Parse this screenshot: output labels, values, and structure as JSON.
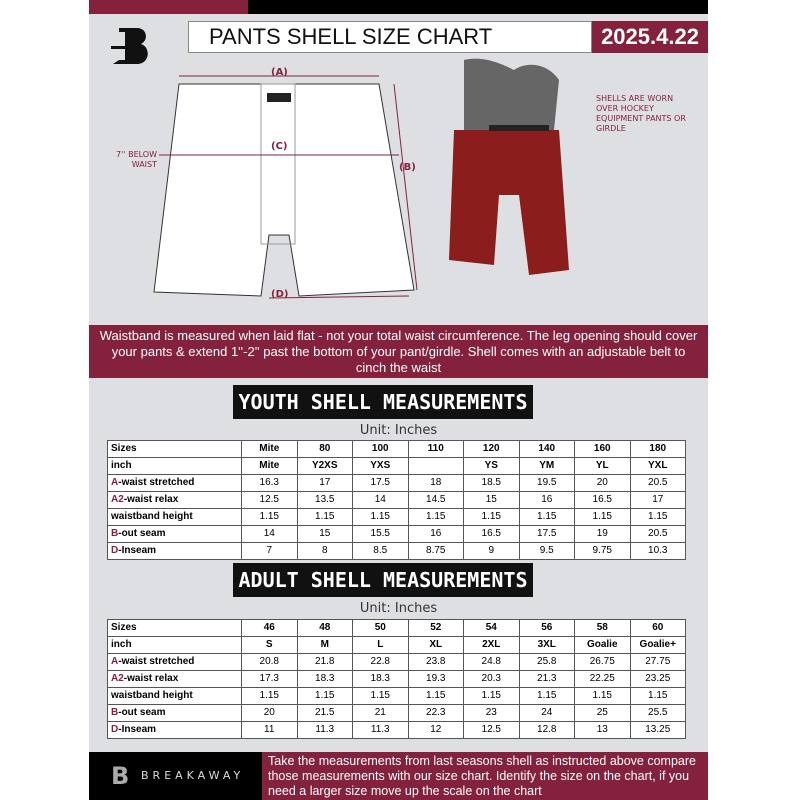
{
  "header": {
    "title": "PANTS SHELL SIZE CHART",
    "date": "2025.4.22",
    "logo_letter": "B"
  },
  "diagram": {
    "label_a": "(A)",
    "label_b": "(B)",
    "label_c": "(C)",
    "label_d": "(D)",
    "below_waist": "7'' BELOW WAIST",
    "shell_note": "SHELLS ARE WORN OVER HOCKEY EQUIPMENT PANTS OR GIRDLE"
  },
  "banner": {
    "text": "Waistband is measured when laid flat - not your total waist circumference. The leg opening should cover your pants & extend 1''-2'' past the bottom of your pant/girdle. Shell comes with an adjustable belt to cinch the waist"
  },
  "youth": {
    "title": "YOUTH SHELL MEASUREMENTS",
    "unit": "Unit: Inches",
    "rows": [
      {
        "prefix": "",
        "label": "Sizes",
        "values": [
          "Mite",
          "80",
          "100",
          "110",
          "120",
          "140",
          "160",
          "180"
        ]
      },
      {
        "prefix": "",
        "label": "inch",
        "values": [
          "Mite",
          "Y2XS",
          "YXS",
          "",
          "YS",
          "YM",
          "YL",
          "YXL"
        ]
      },
      {
        "prefix": "A",
        "label": "-waist stretched",
        "values": [
          "16.3",
          "17",
          "17.5",
          "18",
          "18.5",
          "19.5",
          "20",
          "20.5"
        ]
      },
      {
        "prefix": "A2",
        "label": "-waist relax",
        "values": [
          "12.5",
          "13.5",
          "14",
          "14.5",
          "15",
          "16",
          "16.5",
          "17"
        ]
      },
      {
        "prefix": "",
        "label": "waistband height",
        "values": [
          "1.15",
          "1.15",
          "1.15",
          "1.15",
          "1.15",
          "1.15",
          "1.15",
          "1.15"
        ]
      },
      {
        "prefix": "B",
        "label": "-out seam",
        "values": [
          "14",
          "15",
          "15.5",
          "16",
          "16.5",
          "17.5",
          "19",
          "20.5"
        ]
      },
      {
        "prefix": "D",
        "label": "-Inseam",
        "values": [
          "7",
          "8",
          "8.5",
          "8.75",
          "9",
          "9.5",
          "9.75",
          "10.3"
        ]
      }
    ]
  },
  "adult": {
    "title": "ADULT SHELL MEASUREMENTS",
    "unit": "Unit: Inches",
    "rows": [
      {
        "prefix": "",
        "label": "Sizes",
        "values": [
          "46",
          "48",
          "50",
          "52",
          "54",
          "56",
          "58",
          "60"
        ]
      },
      {
        "prefix": "",
        "label": "inch",
        "values": [
          "S",
          "M",
          "L",
          "XL",
          "2XL",
          "3XL",
          "Goalie",
          "Goalie+"
        ]
      },
      {
        "prefix": "A",
        "label": "-waist stretched",
        "values": [
          "20.8",
          "21.8",
          "22.8",
          "23.8",
          "24.8",
          "25.8",
          "26.75",
          "27.75"
        ]
      },
      {
        "prefix": "A2",
        "label": "-waist relax",
        "values": [
          "17.3",
          "18.3",
          "18.3",
          "19.3",
          "20.3",
          "21.3",
          "22.25",
          "23.25"
        ]
      },
      {
        "prefix": "",
        "label": "waistband height",
        "values": [
          "1.15",
          "1.15",
          "1.15",
          "1.15",
          "1.15",
          "1.15",
          "1.15",
          "1.15"
        ]
      },
      {
        "prefix": "B",
        "label": "-out seam",
        "values": [
          "20",
          "21.5",
          "21",
          "22.3",
          "23",
          "24",
          "25",
          "25.5"
        ]
      },
      {
        "prefix": "D",
        "label": "-Inseam",
        "values": [
          "11",
          "11.3",
          "11.3",
          "12",
          "12.5",
          "12.8",
          "13",
          "13.25"
        ]
      }
    ]
  },
  "footer": {
    "brand": "BREAKAWAY",
    "text": "Take the measurements from last seasons shell as instructed above compare those measurements  with our size chart. Identify the size on the chart, if you need a larger size move up the scale on the chart"
  },
  "colors": {
    "brand": "#84223d",
    "dark": "#111111",
    "background": "#dedfe3"
  }
}
